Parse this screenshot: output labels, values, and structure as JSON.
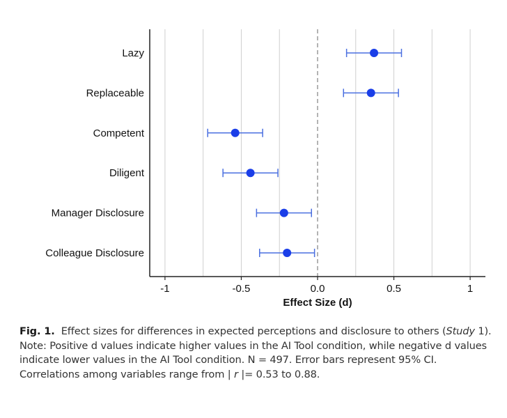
{
  "chart_data": {
    "type": "forest",
    "orientation": "horizontal",
    "categories": [
      "Lazy",
      "Replaceable",
      "Competent",
      "Diligent",
      "Manager Disclosure",
      "Colleague Disclosure"
    ],
    "series": [
      {
        "estimates": [
          0.37,
          0.35,
          -0.54,
          -0.44,
          -0.22,
          -0.2
        ],
        "ci_lower": [
          0.19,
          0.17,
          -0.72,
          -0.62,
          -0.4,
          -0.38
        ],
        "ci_upper": [
          0.55,
          0.53,
          -0.36,
          -0.26,
          -0.04,
          -0.02
        ]
      }
    ],
    "xlabel": "Effect Size (d)",
    "ylabel": "",
    "xlim": [
      -1.1,
      1.1
    ],
    "xticks": [
      -1,
      -0.5,
      0,
      0.5,
      1
    ],
    "xtick_labels": [
      "-1",
      "-0.5",
      "0.0",
      "0.5",
      "1"
    ],
    "reference_line": 0,
    "vertical_gridlines": [
      -1,
      -0.75,
      -0.5,
      -0.25,
      0.25,
      0.5,
      0.75,
      1
    ],
    "grid": true,
    "legend": false,
    "colors": {
      "point": "#1a3ee8",
      "error_bar": "#4a6fe0",
      "gridline": "#cfcfcf",
      "reference": "#9a9a9a",
      "axis": "#222222"
    }
  },
  "caption": {
    "label": "Fig. 1.",
    "text_part1": "Effect sizes for differences in expected perceptions and disclosure to others (",
    "study_italic": "Study",
    "text_part2": " 1). Note: Positive d values indicate higher values in the AI Tool condition, while negative d values indicate lower values in the AI Tool condition. N = 497. Error bars represent 95% CI. Correlations among variables range from | ",
    "r_italic": "r",
    "text_part3": " |= 0.53 to 0.88."
  }
}
